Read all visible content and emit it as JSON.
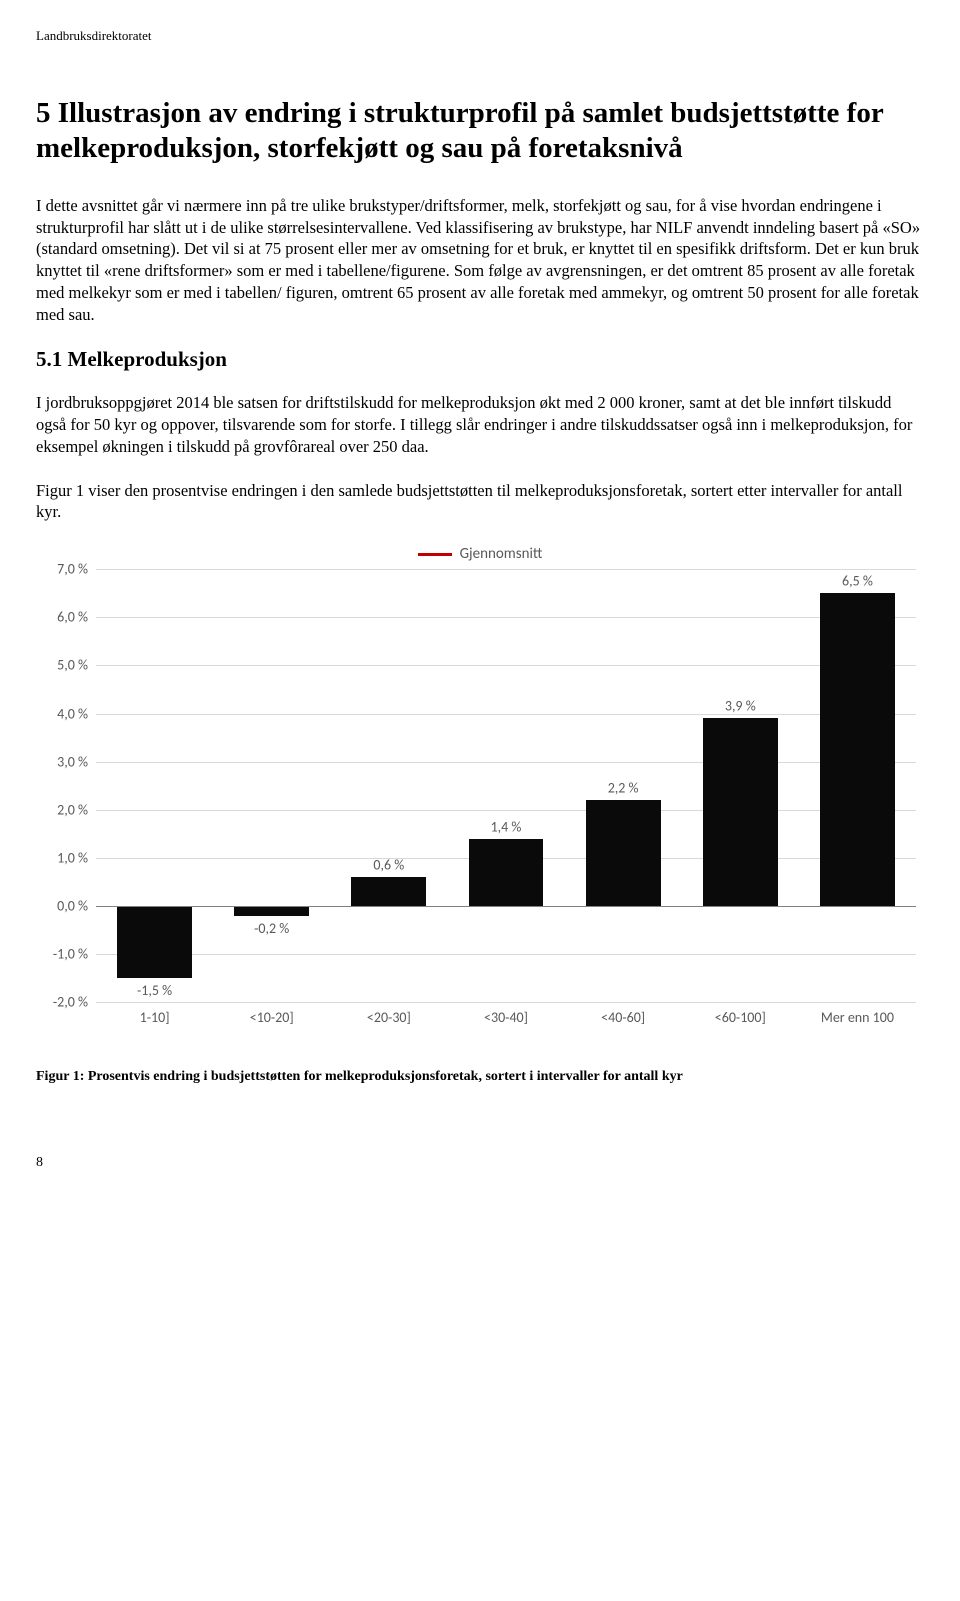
{
  "header": "Landbruksdirektoratet",
  "title": "5 Illustrasjon av endring i strukturprofil på samlet budsjettstøtte for melkeproduksjon, storfekjøtt og sau på foretaksnivå",
  "para1": "I dette avsnittet går vi nærmere inn på tre ulike brukstyper/driftsformer, melk, storfekjøtt og sau, for å vise hvordan endringene i strukturprofil har slått ut i de ulike størrelsesintervallene. Ved klassifisering av brukstype, har NILF anvendt inndeling basert på «SO» (standard omsetning). Det vil si at 75 prosent eller mer av omsetning for et bruk, er knyttet til en spesifikk driftsform. Det er kun bruk knyttet til «rene driftsformer» som er med i tabellene/figurene. Som følge av avgrensningen, er det omtrent 85 prosent av alle foretak med melkekyr som er med i tabellen/ figuren, omtrent 65 prosent av alle foretak med ammekyr, og omtrent 50 prosent for alle foretak med sau.",
  "subsection": "5.1  Melkeproduksjon",
  "para2": "I jordbruksoppgjøret 2014 ble satsen for driftstilskudd for melkeproduksjon økt med 2 000 kroner, samt at det ble innført tilskudd også for 50 kyr og oppover, tilsvarende som for storfe. I tillegg slår endringer i andre tilskuddssatser også inn i melkeproduksjon, for eksempel økningen i tilskudd på grovfôrareal over 250 daa.",
  "para3": "Figur 1 viser den prosentvise endringen i den samlede budsjettstøtten til melkeproduksjonsforetak, sortert etter intervaller for antall kyr.",
  "chart": {
    "type": "bar",
    "legend_label": "Gjennomsnitt",
    "legend_line_color": "#c00000",
    "categories": [
      "1-10]",
      "<10-20]",
      "<20-30]",
      "<30-40]",
      "<40-60]",
      "<60-100]",
      "Mer enn 100"
    ],
    "values": [
      -1.5,
      -0.2,
      0.6,
      1.4,
      2.2,
      3.9,
      6.5
    ],
    "value_labels": [
      "-1,5 %",
      "-0,2 %",
      "0,6 %",
      "1,4 %",
      "2,2 %",
      "3,9 %",
      "6,5 %"
    ],
    "bar_color": "#0a0a0a",
    "y_min": -2.0,
    "y_max": 7.0,
    "y_ticks": [
      -2.0,
      -1.0,
      0.0,
      1.0,
      2.0,
      3.0,
      4.0,
      5.0,
      6.0,
      7.0
    ],
    "y_tick_labels": [
      "-2,0 %",
      "-1,0 %",
      "0,0 %",
      "1,0 %",
      "2,0 %",
      "3,0 %",
      "4,0 %",
      "5,0 %",
      "6,0 %",
      "7,0 %"
    ],
    "grid_color": "#d9d9d9",
    "axis_color": "#808080",
    "text_color": "#595959",
    "label_fontsize": 14
  },
  "figure_caption": "Figur 1: Prosentvis endring i budsjettstøtten for melkeproduksjonsforetak, sortert i intervaller for antall kyr",
  "page_number": "8"
}
